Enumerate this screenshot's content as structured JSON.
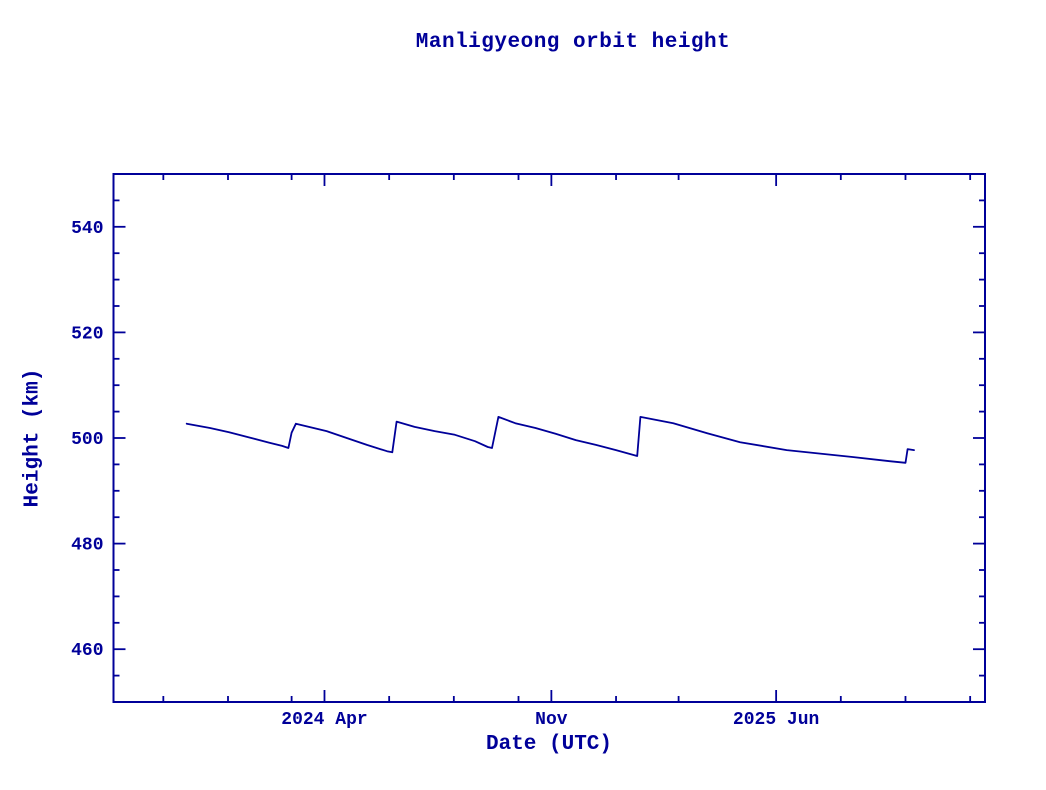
{
  "window": {
    "background": "#ffffff"
  },
  "colors": {
    "axis": "#000099",
    "text": "#000099",
    "line": "#000099",
    "background": "#ffffff"
  },
  "chart_data": {
    "type": "line",
    "title": "Manligyeong orbit height",
    "xlabel": "Date (UTC)",
    "ylabel": "Height (km)",
    "grid": false,
    "legend": "none",
    "x_range": [
      "2023-09-15",
      "2025-12-15"
    ],
    "y_range": [
      450,
      550
    ],
    "x_ticks_major": [
      {
        "date": "2024-04-01",
        "label": "2024 Apr"
      },
      {
        "date": "2024-11-01",
        "label": "Nov"
      },
      {
        "date": "2025-06-01",
        "label": "2025 Jun"
      }
    ],
    "x_ticks_minor": [
      "2023-11-01",
      "2024-01-01",
      "2024-03-01",
      "2024-06-01",
      "2024-08-01",
      "2024-10-01",
      "2025-01-01",
      "2025-03-01",
      "2025-08-01",
      "2025-10-01",
      "2025-12-01"
    ],
    "y_ticks_major": [
      460,
      480,
      500,
      520,
      540
    ],
    "y_ticks_minor": [
      455,
      465,
      470,
      475,
      485,
      490,
      495,
      505,
      510,
      515,
      525,
      530,
      535,
      545
    ],
    "series": [
      {
        "name": "orbit-height",
        "color": "#000099",
        "points": [
          {
            "date": "2023-11-23",
            "km": 502.7
          },
          {
            "date": "2023-12-15",
            "km": 501.9
          },
          {
            "date": "2024-01-02",
            "km": 501.1
          },
          {
            "date": "2024-01-23",
            "km": 500.0
          },
          {
            "date": "2024-02-09",
            "km": 499.1
          },
          {
            "date": "2024-02-21",
            "km": 498.5
          },
          {
            "date": "2024-02-27",
            "km": 498.1
          },
          {
            "date": "2024-03-01",
            "km": 501.0
          },
          {
            "date": "2024-03-05",
            "km": 502.7
          },
          {
            "date": "2024-04-03",
            "km": 501.3
          },
          {
            "date": "2024-04-22",
            "km": 500.0
          },
          {
            "date": "2024-05-11",
            "km": 498.7
          },
          {
            "date": "2024-05-30",
            "km": 497.5
          },
          {
            "date": "2024-06-04",
            "km": 497.3
          },
          {
            "date": "2024-06-08",
            "km": 503.1
          },
          {
            "date": "2024-06-25",
            "km": 502.1
          },
          {
            "date": "2024-07-14",
            "km": 501.3
          },
          {
            "date": "2024-08-02",
            "km": 500.6
          },
          {
            "date": "2024-08-21",
            "km": 499.4
          },
          {
            "date": "2024-09-02",
            "km": 498.3
          },
          {
            "date": "2024-09-06",
            "km": 498.1
          },
          {
            "date": "2024-09-12",
            "km": 504.0
          },
          {
            "date": "2024-09-28",
            "km": 502.8
          },
          {
            "date": "2024-10-17",
            "km": 501.9
          },
          {
            "date": "2024-11-05",
            "km": 500.8
          },
          {
            "date": "2024-11-24",
            "km": 499.6
          },
          {
            "date": "2024-12-13",
            "km": 498.7
          },
          {
            "date": "2025-01-01",
            "km": 497.7
          },
          {
            "date": "2025-01-21",
            "km": 496.6
          },
          {
            "date": "2025-01-24",
            "km": 504.0
          },
          {
            "date": "2025-02-24",
            "km": 502.8
          },
          {
            "date": "2025-03-28",
            "km": 500.9
          },
          {
            "date": "2025-04-28",
            "km": 499.2
          },
          {
            "date": "2025-06-11",
            "km": 497.7
          },
          {
            "date": "2025-08-12",
            "km": 496.4
          },
          {
            "date": "2025-09-16",
            "km": 495.6
          },
          {
            "date": "2025-10-01",
            "km": 495.3
          },
          {
            "date": "2025-10-03",
            "km": 497.9
          },
          {
            "date": "2025-10-09",
            "km": 497.7
          }
        ]
      }
    ]
  }
}
